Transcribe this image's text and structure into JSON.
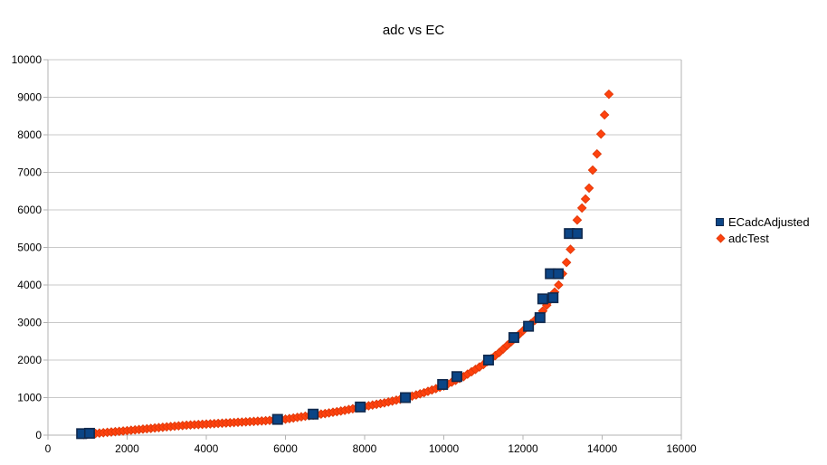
{
  "window": {
    "background": "#ffffff"
  },
  "chart_data": {
    "type": "scatter",
    "title": "adc vs EC",
    "xlabel": "",
    "ylabel": "",
    "xlim": [
      0,
      16000
    ],
    "ylim": [
      0,
      10000
    ],
    "x_ticks": [
      0,
      2000,
      4000,
      6000,
      8000,
      10000,
      12000,
      14000,
      16000
    ],
    "y_ticks": [
      0,
      1000,
      2000,
      3000,
      4000,
      5000,
      6000,
      7000,
      8000,
      9000,
      10000
    ],
    "grid": "horizontal-only",
    "legend_position": "right",
    "colors": {
      "grid": "#c9c9c9",
      "axis": "#b3b3b3",
      "text": "#000000",
      "blue_fill": "#0b4586",
      "blue_border": "#10294d",
      "orange_fill": "#ff420e",
      "orange_border": "#e23a0a"
    },
    "series": [
      {
        "name": "ECadcAdjusted",
        "marker": "square",
        "color": "#0b4586",
        "border": "#10294d",
        "points": [
          [
            850,
            40
          ],
          [
            1050,
            50
          ],
          [
            5800,
            420
          ],
          [
            6700,
            560
          ],
          [
            7890,
            750
          ],
          [
            9030,
            1000
          ],
          [
            9970,
            1350
          ],
          [
            10330,
            1560
          ],
          [
            11130,
            2000
          ],
          [
            11770,
            2600
          ],
          [
            12140,
            2900
          ],
          [
            12430,
            3130
          ],
          [
            12500,
            3630
          ],
          [
            12760,
            3660
          ],
          [
            12690,
            4300
          ],
          [
            12890,
            4300
          ],
          [
            13170,
            5370
          ],
          [
            13370,
            5370
          ]
        ]
      },
      {
        "name": "adcTest",
        "marker": "diamond",
        "color": "#ff420e",
        "border": "#e23a0a",
        "points": [
          [
            900,
            15
          ],
          [
            1000,
            25
          ],
          [
            1100,
            35
          ],
          [
            1200,
            45
          ],
          [
            1300,
            55
          ],
          [
            1400,
            65
          ],
          [
            1500,
            75
          ],
          [
            1600,
            84
          ],
          [
            1700,
            93
          ],
          [
            1800,
            102
          ],
          [
            1900,
            111
          ],
          [
            2000,
            120
          ],
          [
            2100,
            130
          ],
          [
            2200,
            140
          ],
          [
            2300,
            150
          ],
          [
            2400,
            160
          ],
          [
            2500,
            170
          ],
          [
            2600,
            180
          ],
          [
            2700,
            190
          ],
          [
            2800,
            200
          ],
          [
            2900,
            210
          ],
          [
            3000,
            220
          ],
          [
            3100,
            229
          ],
          [
            3200,
            238
          ],
          [
            3300,
            247
          ],
          [
            3400,
            256
          ],
          [
            3500,
            265
          ],
          [
            3600,
            271
          ],
          [
            3700,
            277
          ],
          [
            3800,
            283
          ],
          [
            3900,
            289
          ],
          [
            4000,
            295
          ],
          [
            4100,
            301
          ],
          [
            4200,
            307
          ],
          [
            4300,
            313
          ],
          [
            4400,
            319
          ],
          [
            4500,
            325
          ],
          [
            4600,
            331
          ],
          [
            4700,
            337
          ],
          [
            4800,
            343
          ],
          [
            4900,
            349
          ],
          [
            5000,
            355
          ],
          [
            5100,
            361
          ],
          [
            5200,
            367
          ],
          [
            5300,
            373
          ],
          [
            5400,
            379
          ],
          [
            5500,
            385
          ],
          [
            5600,
            393
          ],
          [
            5700,
            401
          ],
          [
            5800,
            409
          ],
          [
            5900,
            417
          ],
          [
            6000,
            425
          ],
          [
            6100,
            441
          ],
          [
            6200,
            457
          ],
          [
            6300,
            473
          ],
          [
            6400,
            489
          ],
          [
            6500,
            505
          ],
          [
            6600,
            519
          ],
          [
            6700,
            533
          ],
          [
            6800,
            547
          ],
          [
            6900,
            561
          ],
          [
            7000,
            575
          ],
          [
            7100,
            592
          ],
          [
            7200,
            609
          ],
          [
            7300,
            626
          ],
          [
            7400,
            643
          ],
          [
            7500,
            660
          ],
          [
            7600,
            681
          ],
          [
            7700,
            702
          ],
          [
            7800,
            724
          ],
          [
            7900,
            745
          ],
          [
            8000,
            764
          ],
          [
            8100,
            783
          ],
          [
            8200,
            802
          ],
          [
            8300,
            822
          ],
          [
            8400,
            841
          ],
          [
            8500,
            860
          ],
          [
            8600,
            884
          ],
          [
            8700,
            908
          ],
          [
            8800,
            932
          ],
          [
            8900,
            956
          ],
          [
            9000,
            980
          ],
          [
            9100,
            1010
          ],
          [
            9200,
            1040
          ],
          [
            9300,
            1070
          ],
          [
            9400,
            1100
          ],
          [
            9500,
            1130
          ],
          [
            9600,
            1166
          ],
          [
            9700,
            1202
          ],
          [
            9800,
            1238
          ],
          [
            9900,
            1274
          ],
          [
            10000,
            1310
          ],
          [
            10100,
            1360
          ],
          [
            10200,
            1410
          ],
          [
            10300,
            1460
          ],
          [
            10400,
            1510
          ],
          [
            10500,
            1560
          ],
          [
            10600,
            1624
          ],
          [
            10700,
            1688
          ],
          [
            10800,
            1752
          ],
          [
            10900,
            1816
          ],
          [
            11000,
            1880
          ],
          [
            11100,
            1960
          ],
          [
            11200,
            2040
          ],
          [
            11300,
            2120
          ],
          [
            11400,
            2200
          ],
          [
            11500,
            2295
          ],
          [
            11600,
            2390
          ],
          [
            11700,
            2485
          ],
          [
            11800,
            2580
          ],
          [
            11900,
            2680
          ],
          [
            12000,
            2780
          ],
          [
            12100,
            2880
          ],
          [
            12200,
            2970
          ],
          [
            12300,
            3060
          ],
          [
            12400,
            3150
          ],
          [
            12500,
            3307
          ],
          [
            12600,
            3463
          ],
          [
            12700,
            3620
          ],
          [
            12800,
            3810
          ],
          [
            12900,
            4000
          ],
          [
            13000,
            4300
          ],
          [
            13100,
            4600
          ],
          [
            13200,
            4950
          ],
          [
            13280,
            5350
          ],
          [
            13370,
            5730
          ],
          [
            13490,
            6050
          ],
          [
            13580,
            6290
          ],
          [
            13670,
            6580
          ],
          [
            13760,
            7060
          ],
          [
            13870,
            7490
          ],
          [
            13970,
            8020
          ],
          [
            14060,
            8530
          ],
          [
            14170,
            9080
          ]
        ]
      }
    ]
  }
}
